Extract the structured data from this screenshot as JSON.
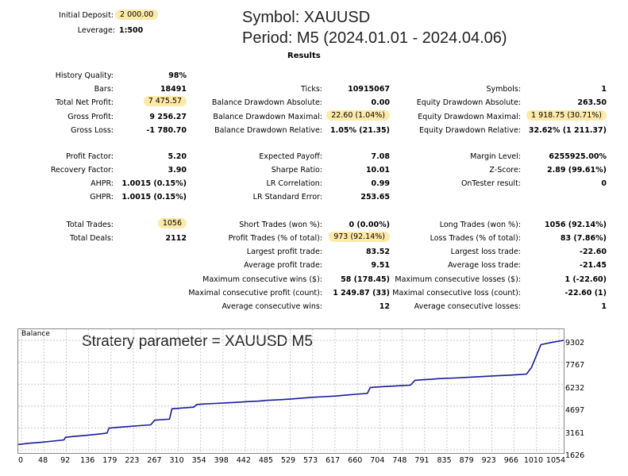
{
  "header": {
    "deposit_label": "Initial Deposit:",
    "deposit_value": "2 000.00",
    "leverage_label": "Leverage:",
    "leverage_value": "1:500",
    "symbol_line": "Symbol:  XAUUSD",
    "period_line": "Period: M5 (2024.01.01 - 2024.04.06)",
    "results_title": "Results"
  },
  "col1": [
    {
      "label": "History Quality:",
      "value": "98%"
    },
    {
      "label": "Bars:",
      "value": "18491"
    },
    {
      "label": "Total Net Profit:",
      "value": "7 475.57"
    },
    {
      "label": "Gross Profit:",
      "value": "9 256.27"
    },
    {
      "label": "Gross Loss:",
      "value": "-1 780.70"
    },
    {
      "label": "Profit Factor:",
      "value": "5.20"
    },
    {
      "label": "Recovery Factor:",
      "value": "3.90"
    },
    {
      "label": "AHPR:",
      "value": "1.0015 (0.15%)"
    },
    {
      "label": "GHPR:",
      "value": "1.0015 (0.15%)"
    },
    {
      "label": "Total Trades:",
      "value": "1056"
    },
    {
      "label": "Total Deals:",
      "value": "2112"
    }
  ],
  "col2": [
    {
      "label": "Ticks:",
      "value": "10915067"
    },
    {
      "label": "Balance Drawdown Absolute:",
      "value": "0.00"
    },
    {
      "label": "Balance Drawdown Maximal:",
      "value": "22.60 (1.04%)"
    },
    {
      "label": "Balance Drawdown Relative:",
      "value": "1.05% (21.35)"
    },
    {
      "label": "Expected Payoff:",
      "value": "7.08"
    },
    {
      "label": "Sharpe Ratio:",
      "value": "10.01"
    },
    {
      "label": "LR Correlation:",
      "value": "0.99"
    },
    {
      "label": "LR Standard Error:",
      "value": "253.65"
    },
    {
      "label": "Short Trades (won %):",
      "value": "0 (0.00%)"
    },
    {
      "label": "Profit Trades (% of total):",
      "value": "973 (92.14%)"
    },
    {
      "label": "Largest profit trade:",
      "value": "83.52"
    },
    {
      "label": "Average profit trade:",
      "value": "9.51"
    },
    {
      "label": "Maximum consecutive wins ($):",
      "value": "58 (178.45)"
    },
    {
      "label": "Maximal consecutive profit (count):",
      "value": "1 249.87 (33)"
    },
    {
      "label": "Average consecutive wins:",
      "value": "12"
    }
  ],
  "col3": [
    {
      "label": "Symbols:",
      "value": "1"
    },
    {
      "label": "Equity Drawdown Absolute:",
      "value": "263.50"
    },
    {
      "label": "Equity Drawdown Maximal:",
      "value": "1 918.75 (30.71%)"
    },
    {
      "label": "Equity Drawdown Relative:",
      "value": "32.62% (1 211.37)"
    },
    {
      "label": "Margin Level:",
      "value": "6255925.00%"
    },
    {
      "label": "Z-Score:",
      "value": "2.89 (99.61%)"
    },
    {
      "label": "OnTester result:",
      "value": "0"
    },
    {
      "label": "Long Trades (won %):",
      "value": "1056 (92.14%)"
    },
    {
      "label": "Loss Trades (% of total):",
      "value": "83 (7.86%)"
    },
    {
      "label": "Largest loss trade:",
      "value": "-22.60"
    },
    {
      "label": "Average loss trade:",
      "value": "-21.45"
    },
    {
      "label": "Maximum consecutive losses ($):",
      "value": "1 (-22.60)"
    },
    {
      "label": "Maximal consecutive loss (count):",
      "value": "-22.60 (1)"
    },
    {
      "label": "Average consecutive losses:",
      "value": "1"
    }
  ],
  "colors": {
    "highlight": "#fde9a8",
    "balance_line": "#1a1a9c"
  },
  "chart_data": {
    "type": "line",
    "legend": "Balance",
    "annotation": "Stratery parameter = XAUUSD M5",
    "y_ticks": [
      "9302",
      "7767",
      "6232",
      "4697",
      "3161",
      "1626"
    ],
    "x_ticks": [
      "0",
      "48",
      "92",
      "136",
      "179",
      "223",
      "267",
      "310",
      "354",
      "398",
      "442",
      "485",
      "529",
      "573",
      "617",
      "660",
      "704",
      "748",
      "791",
      "835",
      "879",
      "923",
      "966",
      "1010",
      "1054"
    ],
    "ylim": [
      1626,
      9302
    ],
    "xlim": [
      0,
      1100
    ],
    "series": [
      {
        "name": "Balance",
        "x": [
          0,
          20,
          48,
          70,
          92,
          95,
          110,
          136,
          160,
          179,
          183,
          200,
          223,
          245,
          267,
          275,
          290,
          305,
          310,
          330,
          354,
          360,
          375,
          398,
          420,
          442,
          460,
          485,
          500,
          529,
          550,
          573,
          590,
          617,
          640,
          660,
          680,
          704,
          710,
          730,
          748,
          770,
          791,
          800,
          815,
          835,
          850,
          879,
          900,
          923,
          945,
          966,
          990,
          1010,
          1025,
          1035,
          1054,
          1075,
          1100
        ],
        "values": [
          2000,
          2080,
          2160,
          2240,
          2320,
          2500,
          2560,
          2640,
          2720,
          2800,
          3150,
          3200,
          3260,
          3320,
          3380,
          3700,
          3740,
          3780,
          4500,
          4560,
          4620,
          4800,
          4840,
          4880,
          4920,
          4960,
          5000,
          5040,
          5090,
          5140,
          5190,
          5250,
          5300,
          5350,
          5400,
          5460,
          5520,
          5580,
          6000,
          6040,
          6080,
          6120,
          6160,
          6500,
          6540,
          6580,
          6620,
          6660,
          6700,
          6740,
          6780,
          6820,
          6860,
          6900,
          6940,
          7400,
          9000,
          9150,
          9302
        ]
      }
    ]
  }
}
